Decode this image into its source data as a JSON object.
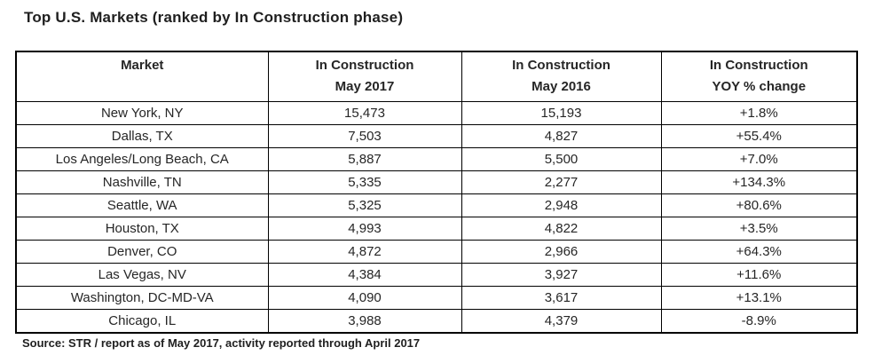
{
  "title": "Top U.S. Markets (ranked by In Construction phase)",
  "source_note": "Source: STR / report as of May 2017, activity reported through April 2017",
  "colors": {
    "background": "#ffffff",
    "border": "#000000",
    "text": "#262626"
  },
  "chart_data": {
    "type": "table",
    "title": "Top U.S. Markets (ranked by In Construction phase)",
    "columns": [
      "Market",
      "In Construction May 2017",
      "In Construction May 2016",
      "In Construction YOY % change"
    ],
    "header_lines": [
      [
        "Market",
        ""
      ],
      [
        "In Construction",
        "May 2017"
      ],
      [
        "In Construction",
        "May 2016"
      ],
      [
        "In Construction",
        "YOY % change"
      ]
    ],
    "rows": [
      [
        "New York, NY",
        "15,473",
        "15,193",
        "+1.8%"
      ],
      [
        "Dallas, TX",
        "7,503",
        "4,827",
        "+55.4%"
      ],
      [
        "Los Angeles/Long Beach, CA",
        "5,887",
        "5,500",
        "+7.0%"
      ],
      [
        "Nashville, TN",
        "5,335",
        "2,277",
        "+134.3%"
      ],
      [
        "Seattle, WA",
        "5,325",
        "2,948",
        "+80.6%"
      ],
      [
        "Houston, TX",
        "4,993",
        "4,822",
        "+3.5%"
      ],
      [
        "Denver, CO",
        "4,872",
        "2,966",
        "+64.3%"
      ],
      [
        "Las Vegas, NV",
        "4,384",
        "3,927",
        "+11.6%"
      ],
      [
        "Washington, DC-MD-VA",
        "4,090",
        "3,617",
        "+13.1%"
      ],
      [
        "Chicago, IL",
        "3,988",
        "4,379",
        "-8.9%"
      ]
    ],
    "values": {
      "in_construction_may_2017": [
        15473,
        7503,
        5887,
        5335,
        5325,
        4993,
        4872,
        4384,
        4090,
        3988
      ],
      "in_construction_may_2016": [
        15193,
        4827,
        5500,
        2277,
        2948,
        4822,
        2966,
        3927,
        3617,
        4379
      ],
      "yoy_pct_change": [
        1.8,
        55.4,
        7.0,
        134.3,
        80.6,
        3.5,
        64.3,
        11.6,
        13.1,
        -8.9
      ]
    },
    "source": "Source: STR / report as of May 2017, activity reported through April 2017"
  }
}
